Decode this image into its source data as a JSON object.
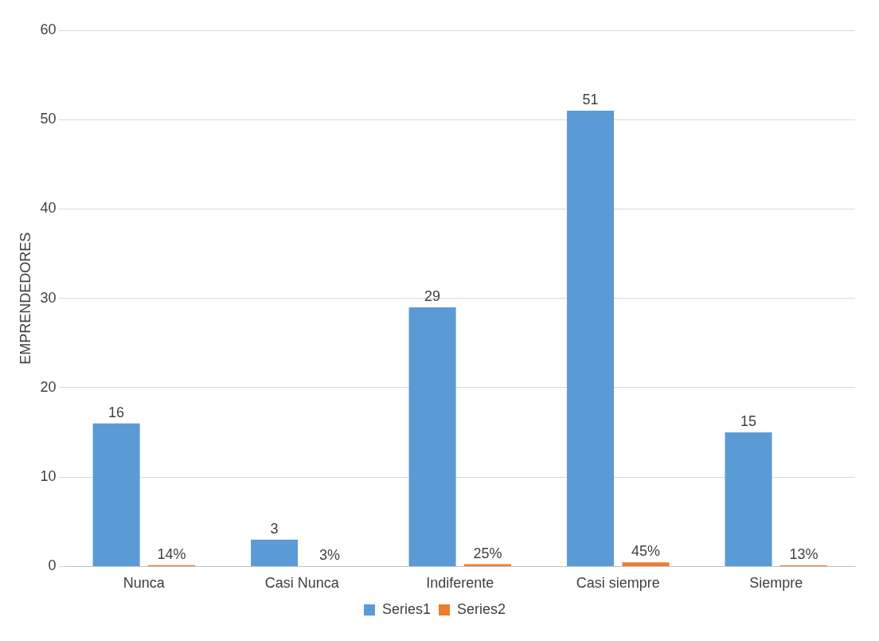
{
  "chart_data": {
    "type": "bar",
    "categories": [
      "Nunca",
      "Casi Nunca",
      "Indiferente",
      "Casi siempre",
      "Siempre"
    ],
    "series": [
      {
        "name": "Series1",
        "color": "#5b9bd5",
        "values": [
          16,
          3,
          29,
          51,
          15
        ],
        "value_labels": [
          "16",
          "3",
          "29",
          "51",
          "15"
        ]
      },
      {
        "name": "Series2",
        "color": "#ed7d31",
        "values": [
          0.14,
          0.03,
          0.25,
          0.45,
          0.13
        ],
        "value_labels": [
          "14%",
          "3%",
          "25%",
          "45%",
          "13%"
        ]
      }
    ],
    "ylabel": "EMPRENDEDORES",
    "ylim": [
      0,
      60
    ],
    "yticks": [
      0,
      10,
      20,
      30,
      40,
      50,
      60
    ],
    "grid": "y",
    "legend": "bottom"
  }
}
